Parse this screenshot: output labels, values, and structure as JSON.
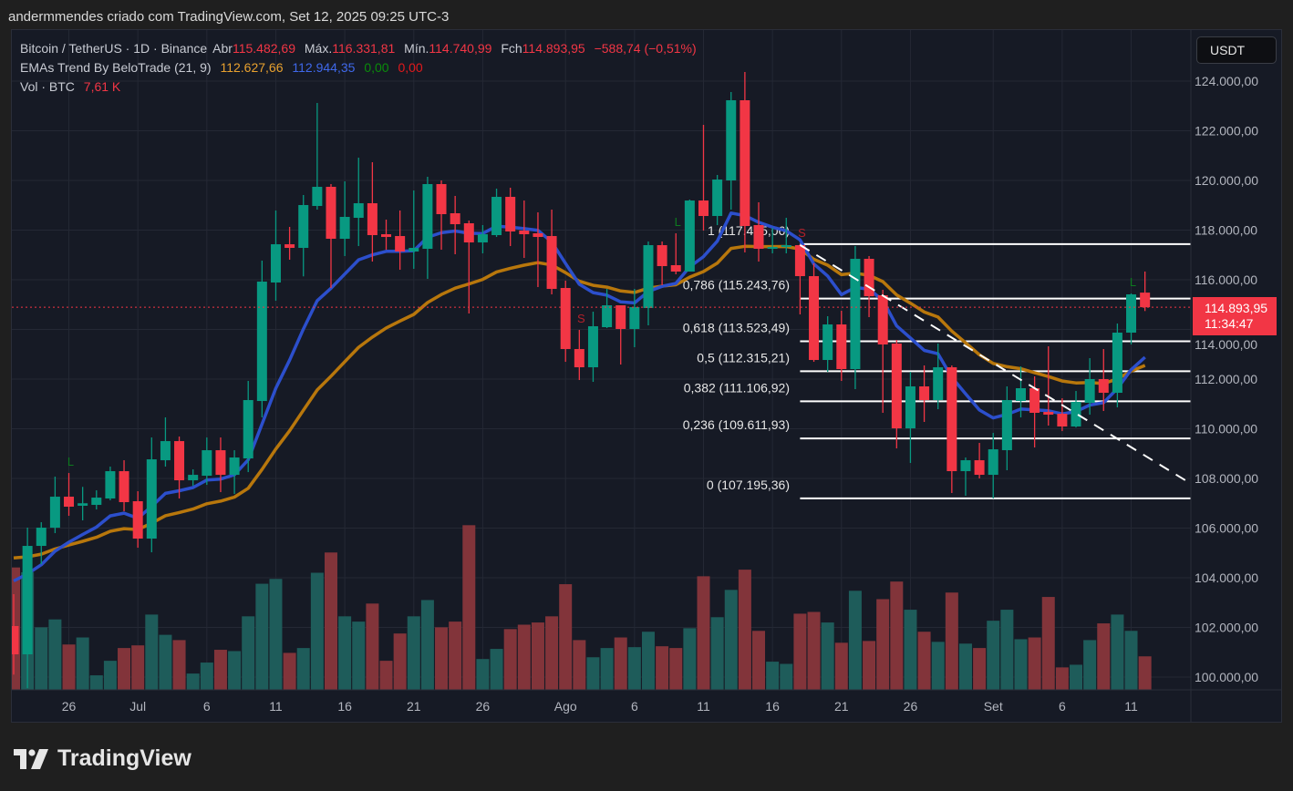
{
  "header": {
    "attribution": "andermmendes criado com TradingView.com, Set 12, 2025 09:25 UTC-3"
  },
  "legend": {
    "symbol": "Bitcoin / TetherUS · 1D · Binance",
    "open_label": "Abr",
    "open": "115.482,69",
    "high_label": "Máx.",
    "high": "116.331,81",
    "low_label": "Mín.",
    "low": "114.740,99",
    "close_label": "Fch",
    "close": "114.893,95",
    "change": "−588,74 (−0,51%)",
    "indicator": "EMAs Trend By BeloTrade (21, 9)",
    "ema21_value": "112.627,66",
    "ema9_value": "112.944,35",
    "buy_value": "0,00",
    "sell_value": "0,00",
    "volume_label": "Vol · BTC",
    "volume_value": "7,61 K"
  },
  "currency_button": "USDT",
  "price_tag": {
    "price": "114.893,95",
    "countdown": "11:34:47"
  },
  "footer": {
    "logo_text": "TradingView"
  },
  "colors": {
    "up": "#089981",
    "down": "#f23645",
    "vol_up": "#1e5c5a",
    "vol_down": "#82343a",
    "ema21": "#b8770c",
    "ema9": "#2c4fcc",
    "fib": "#ffffff"
  },
  "chart_data": {
    "type": "candlestick",
    "y_axis_ticks": [
      "100.000,00",
      "102.000,00",
      "104.000,00",
      "106.000,00",
      "108.000,00",
      "110.000,00",
      "112.000,00",
      "114.000,00",
      "116.000,00",
      "118.000,00",
      "120.000,00",
      "122.000,00",
      "124.000,00"
    ],
    "ylim": [
      99300,
      125000
    ],
    "x_axis_ticks": [
      {
        "date": "2025-06-26",
        "label": "26"
      },
      {
        "date": "2025-07-01",
        "label": "Jul"
      },
      {
        "date": "2025-07-06",
        "label": "6"
      },
      {
        "date": "2025-07-11",
        "label": "11"
      },
      {
        "date": "2025-07-16",
        "label": "16"
      },
      {
        "date": "2025-07-21",
        "label": "21"
      },
      {
        "date": "2025-07-26",
        "label": "26"
      },
      {
        "date": "2025-08-01",
        "label": "Ago"
      },
      {
        "date": "2025-08-06",
        "label": "6"
      },
      {
        "date": "2025-08-11",
        "label": "11"
      },
      {
        "date": "2025-08-16",
        "label": "16"
      },
      {
        "date": "2025-08-21",
        "label": "21"
      },
      {
        "date": "2025-08-26",
        "label": "26"
      },
      {
        "date": "2025-09-01",
        "label": "Set"
      },
      {
        "date": "2025-09-06",
        "label": "6"
      },
      {
        "date": "2025-09-11",
        "label": "11"
      }
    ],
    "candle_fields": [
      "date",
      "open",
      "high",
      "low",
      "close",
      "volume_k"
    ],
    "candles": [
      [
        "2025-06-22",
        102055,
        103340,
        100100,
        100917,
        27.8
      ],
      [
        "2025-06-23",
        100917,
        106017,
        99556,
        105283,
        26.7
      ],
      [
        "2025-06-24",
        105283,
        106237,
        104549,
        106017,
        14.2
      ],
      [
        "2025-06-25",
        106017,
        108072,
        105797,
        107265,
        16.0
      ],
      [
        "2025-06-26",
        107265,
        108219,
        106494,
        106862,
        10.3
      ],
      [
        "2025-06-27",
        106900,
        107660,
        106311,
        107000,
        11.9
      ],
      [
        "2025-06-28",
        106935,
        107522,
        106751,
        107228,
        3.3
      ],
      [
        "2025-06-29",
        107192,
        108476,
        107118,
        108292,
        6.6
      ],
      [
        "2025-06-30",
        108292,
        108733,
        106678,
        107045,
        9.5
      ],
      [
        "2025-07-01",
        107082,
        107485,
        105210,
        105577,
        10.1
      ],
      [
        "2025-07-02",
        105577,
        109650,
        105026,
        108769,
        17.1
      ],
      [
        "2025-07-03",
        108732,
        110458,
        108476,
        109503,
        12.5
      ],
      [
        "2025-07-04",
        109503,
        109687,
        107192,
        107925,
        11.3
      ],
      [
        "2025-07-05",
        107925,
        108366,
        107705,
        108145,
        3.7
      ],
      [
        "2025-07-06",
        108108,
        109650,
        107742,
        109136,
        6.2
      ],
      [
        "2025-07-07",
        109136,
        109650,
        107448,
        108145,
        9.1
      ],
      [
        "2025-07-08",
        108145,
        109136,
        107375,
        108843,
        8.8
      ],
      [
        "2025-07-09",
        108806,
        111926,
        108255,
        111155,
        16.7
      ],
      [
        "2025-07-10",
        111118,
        116770,
        110458,
        115926,
        24.1
      ],
      [
        "2025-07-11",
        115890,
        118789,
        115155,
        117430,
        25.2
      ],
      [
        "2025-07-12",
        117430,
        118128,
        116807,
        117284,
        8.4
      ],
      [
        "2025-07-13",
        117284,
        119413,
        116137,
        119009,
        9.5
      ],
      [
        "2025-07-14",
        118972,
        123119,
        118825,
        119743,
        26.6
      ],
      [
        "2025-07-15",
        119743,
        119853,
        115669,
        117651,
        31.2
      ],
      [
        "2025-07-16",
        117651,
        119963,
        116954,
        118532,
        16.7
      ],
      [
        "2025-07-17",
        118495,
        120917,
        117357,
        119082,
        15.5
      ],
      [
        "2025-07-18",
        119082,
        120733,
        116733,
        117798,
        19.6
      ],
      [
        "2025-07-19",
        117834,
        118422,
        117210,
        117724,
        6.6
      ],
      [
        "2025-07-20",
        117761,
        118789,
        116403,
        117137,
        12.8
      ],
      [
        "2025-07-21",
        117137,
        119596,
        116440,
        117284,
        16.7
      ],
      [
        "2025-07-22",
        117247,
        120147,
        116036,
        119853,
        20.4
      ],
      [
        "2025-07-23",
        119853,
        120000,
        117210,
        118642,
        14.2
      ],
      [
        "2025-07-24",
        118679,
        119376,
        117027,
        118238,
        15.5
      ],
      [
        "2025-07-25",
        118275,
        118385,
        114642,
        117504,
        37.4
      ],
      [
        "2025-07-26",
        117504,
        118202,
        117064,
        117834,
        7.0
      ],
      [
        "2025-07-27",
        117798,
        119670,
        117724,
        119339,
        9.3
      ],
      [
        "2025-07-28",
        119339,
        119706,
        117357,
        117945,
        13.8
      ],
      [
        "2025-07-29",
        117981,
        119192,
        116880,
        117834,
        14.8
      ],
      [
        "2025-07-30",
        117871,
        118715,
        115706,
        117724,
        15.3
      ],
      [
        "2025-07-31",
        117761,
        118825,
        115412,
        115632,
        16.7
      ],
      [
        "2025-08-01",
        115669,
        115963,
        112696,
        113210,
        24.0
      ],
      [
        "2025-08-02",
        113210,
        113981,
        111963,
        112476,
        11.3
      ],
      [
        "2025-08-03",
        112476,
        114715,
        111889,
        114128,
        7.4
      ],
      [
        "2025-08-04",
        114091,
        115633,
        114055,
        114972,
        9.5
      ],
      [
        "2025-08-05",
        114972,
        114972,
        112587,
        114018,
        11.9
      ],
      [
        "2025-08-06",
        114018,
        115633,
        113284,
        114899,
        9.7
      ],
      [
        "2025-08-07",
        114862,
        117541,
        114165,
        117394,
        13.2
      ],
      [
        "2025-08-08",
        117394,
        117541,
        115779,
        116550,
        9.9
      ],
      [
        "2025-08-09",
        116587,
        117871,
        116220,
        116330,
        9.5
      ],
      [
        "2025-08-10",
        116330,
        119229,
        116330,
        119192,
        14.0
      ],
      [
        "2025-08-11",
        119192,
        122238,
        117981,
        118568,
        25.8
      ],
      [
        "2025-08-12",
        118568,
        120220,
        118202,
        120037,
        16.5
      ],
      [
        "2025-08-13",
        120000,
        123560,
        118825,
        123229,
        22.7
      ],
      [
        "2025-08-14",
        123229,
        124367,
        117100,
        118165,
        27.3
      ],
      [
        "2025-08-15",
        118202,
        119119,
        116733,
        117247,
        13.4
      ],
      [
        "2025-08-16",
        117284,
        118091,
        117064,
        117320,
        6.4
      ],
      [
        "2025-08-17",
        117320,
        118495,
        117064,
        117394,
        5.9
      ],
      [
        "2025-08-18",
        117394,
        117431,
        114605,
        116146,
        17.3
      ],
      [
        "2025-08-19",
        116146,
        116660,
        112696,
        112770,
        17.7
      ],
      [
        "2025-08-20",
        112770,
        114532,
        112293,
        114201,
        15.3
      ],
      [
        "2025-08-21",
        114201,
        114752,
        111926,
        112403,
        10.7
      ],
      [
        "2025-08-22",
        112403,
        117357,
        111596,
        116843,
        22.5
      ],
      [
        "2025-08-23",
        116843,
        116954,
        114495,
        115339,
        11.1
      ],
      [
        "2025-08-24",
        115376,
        115596,
        110642,
        113394,
        20.6
      ],
      [
        "2025-08-25",
        113430,
        113578,
        109210,
        110017,
        24.6
      ],
      [
        "2025-08-26",
        110017,
        112293,
        108623,
        111706,
        18.2
      ],
      [
        "2025-08-27",
        111706,
        112550,
        110275,
        111156,
        13.2
      ],
      [
        "2025-08-28",
        111156,
        113431,
        110788,
        112476,
        10.9
      ],
      [
        "2025-08-29",
        112476,
        112550,
        107412,
        108293,
        22.1
      ],
      [
        "2025-08-30",
        108293,
        108843,
        107302,
        108733,
        10.5
      ],
      [
        "2025-08-31",
        108733,
        109430,
        108000,
        108146,
        9.5
      ],
      [
        "2025-09-01",
        108146,
        109834,
        107192,
        109173,
        15.7
      ],
      [
        "2025-09-02",
        109137,
        111706,
        108330,
        111155,
        18.2
      ],
      [
        "2025-09-03",
        111119,
        112513,
        110458,
        111633,
        11.5
      ],
      [
        "2025-09-04",
        111633,
        112110,
        109247,
        110642,
        11.9
      ],
      [
        "2025-09-05",
        110678,
        113321,
        110128,
        110568,
        21.1
      ],
      [
        "2025-09-06",
        110605,
        111229,
        109907,
        110091,
        5.1
      ],
      [
        "2025-09-07",
        110091,
        111522,
        110050,
        111082,
        5.7
      ],
      [
        "2025-09-08",
        111045,
        112844,
        110568,
        112000,
        11.3
      ],
      [
        "2025-09-09",
        112000,
        113210,
        110715,
        111449,
        15.1
      ],
      [
        "2025-09-10",
        111449,
        114238,
        110862,
        113871,
        17.1
      ],
      [
        "2025-09-11",
        113871,
        115450,
        113394,
        115412,
        13.4
      ],
      [
        "2025-09-12",
        115482.69,
        116331.81,
        114740.99,
        114893.95,
        7.61
      ]
    ],
    "ema_lines": [
      {
        "period": 21,
        "color": "#b8770c",
        "first_value": 104800
      },
      {
        "period": 9,
        "color": "#2c4fcc",
        "first_value": 103870
      }
    ],
    "signals": [
      {
        "date": "2025-06-26",
        "label": "L",
        "color": "#0d7a1f"
      },
      {
        "date": "2025-08-02",
        "label": "S",
        "color": "#b2202a"
      },
      {
        "date": "2025-08-09",
        "label": "L",
        "color": "#0d7a1f"
      },
      {
        "date": "2025-08-18",
        "label": "S",
        "color": "#b2202a"
      },
      {
        "date": "2025-09-11",
        "label": "L",
        "color": "#0d7a1f"
      }
    ],
    "fibonacci": {
      "start_date": "2025-08-18",
      "levels": [
        {
          "ratio": 1,
          "price": 117435.06,
          "label": "1 (117.435,06)"
        },
        {
          "ratio": 0.786,
          "price": 115243.76,
          "label": "0,786 (115.243,76)"
        },
        {
          "ratio": 0.618,
          "price": 113523.49,
          "label": "0,618 (113.523,49)"
        },
        {
          "ratio": 0.5,
          "price": 112315.21,
          "label": "0,5 (112.315,21)"
        },
        {
          "ratio": 0.382,
          "price": 111106.92,
          "label": "0,382 (111.106,92)"
        },
        {
          "ratio": 0.236,
          "price": 109611.93,
          "label": "0,236 (109.611,93)"
        },
        {
          "ratio": 0,
          "price": 107195.36,
          "label": "0 (107.195,36)"
        }
      ]
    },
    "trendline": [
      {
        "date": "2025-08-18",
        "price": 117400
      },
      {
        "date": "2025-09-15",
        "price": 107900
      }
    ],
    "last_price": 114893.95
  }
}
